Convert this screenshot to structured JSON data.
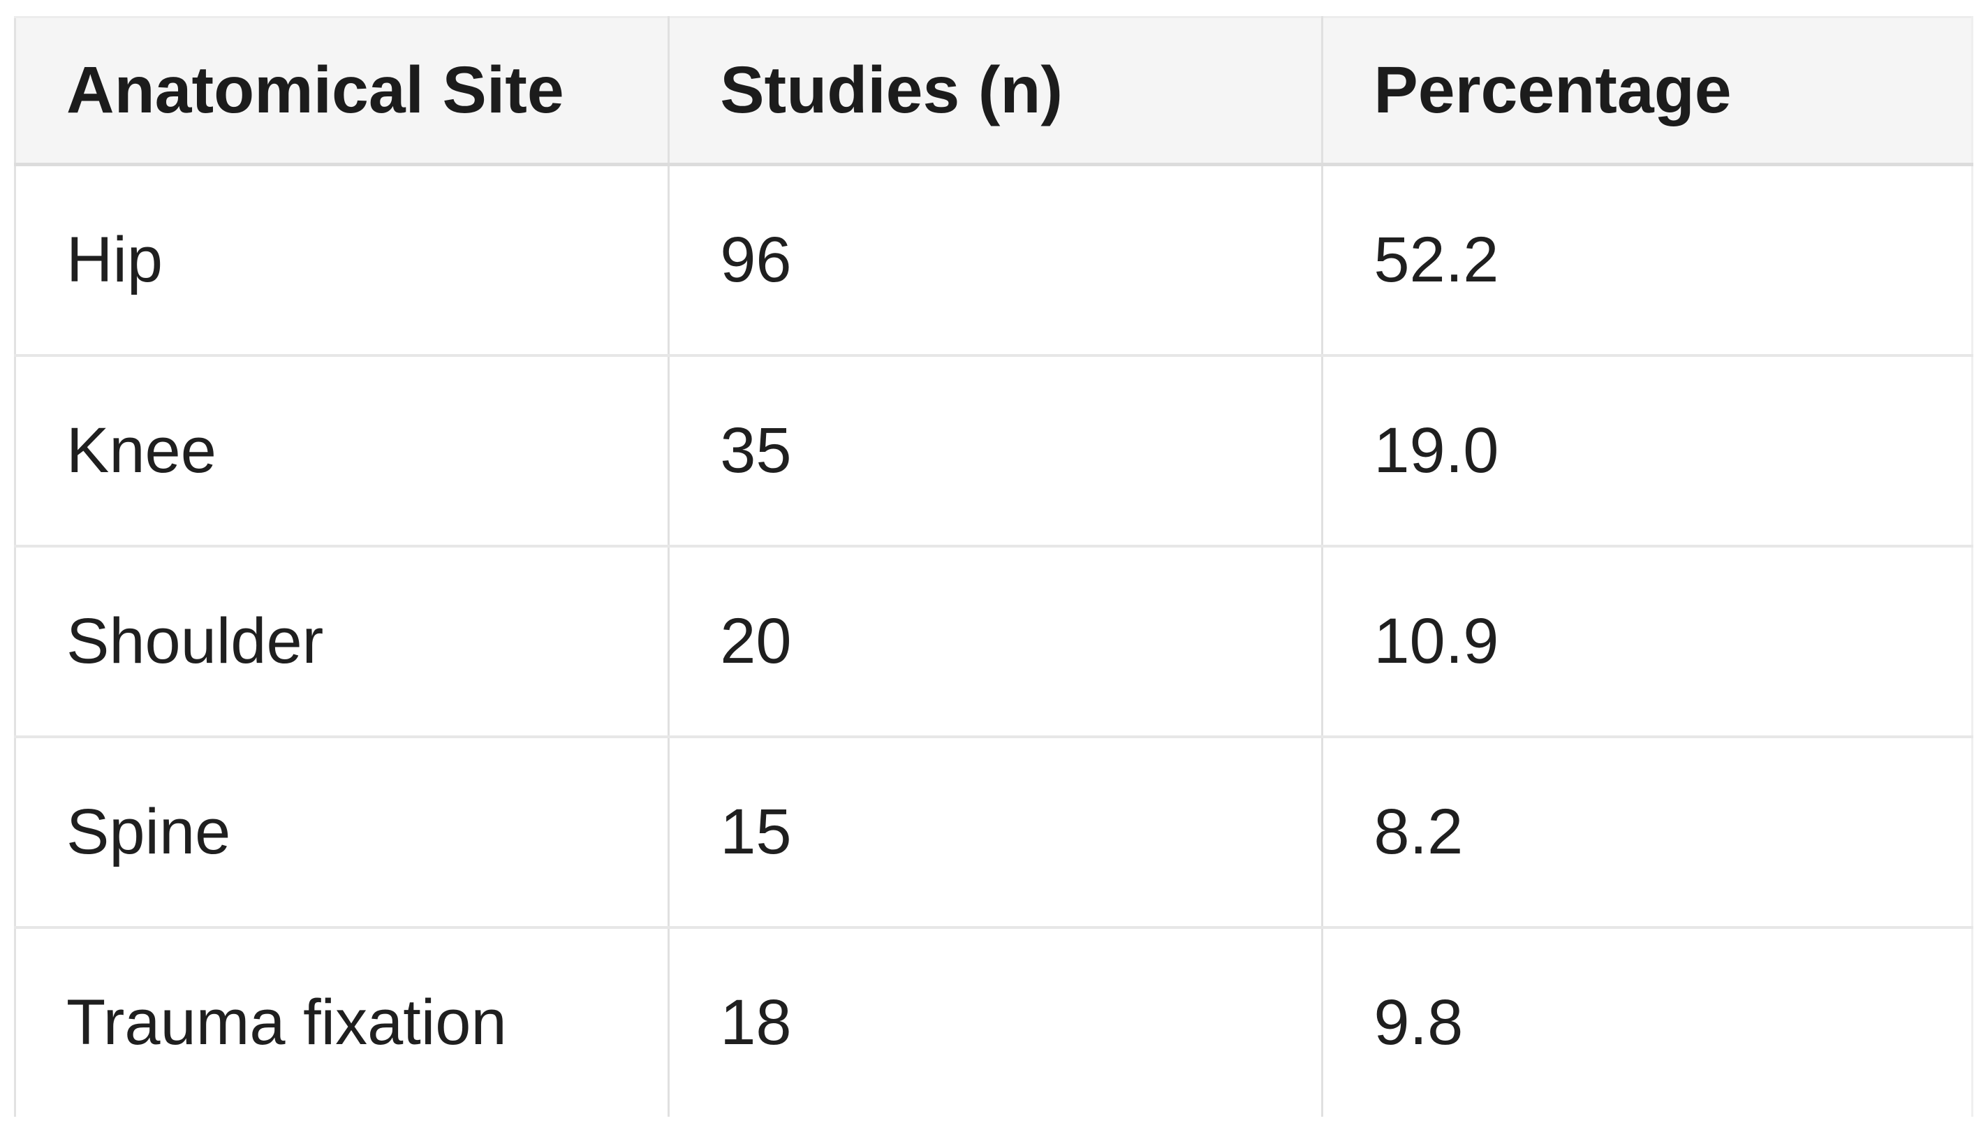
{
  "table": {
    "columns": {
      "site": "Anatomical Site",
      "studies": "Studies (n)",
      "percentage": "Percentage"
    },
    "rows": [
      {
        "site": "Hip",
        "studies": "96",
        "percentage": "52.2"
      },
      {
        "site": "Knee",
        "studies": "35",
        "percentage": "19.0"
      },
      {
        "site": "Shoulder",
        "studies": "20",
        "percentage": "10.9"
      },
      {
        "site": "Spine",
        "studies": "15",
        "percentage": "8.2"
      },
      {
        "site": "Trauma fixation",
        "studies": "18",
        "percentage": "9.8"
      }
    ]
  },
  "colors": {
    "header_background": "#f5f5f5",
    "row_background": "#ffffff",
    "grid_line": "#e0e0e0",
    "header_border": "#dcdcdc",
    "text": "#1f1f1f"
  },
  "chart_data": {
    "type": "table",
    "title": "",
    "columns": [
      "Anatomical Site",
      "Studies (n)",
      "Percentage"
    ],
    "rows": [
      [
        "Hip",
        96,
        52.2
      ],
      [
        "Knee",
        35,
        19.0
      ],
      [
        "Shoulder",
        20,
        10.9
      ],
      [
        "Spine",
        15,
        8.2
      ],
      [
        "Trauma fixation",
        18,
        9.8
      ]
    ]
  }
}
